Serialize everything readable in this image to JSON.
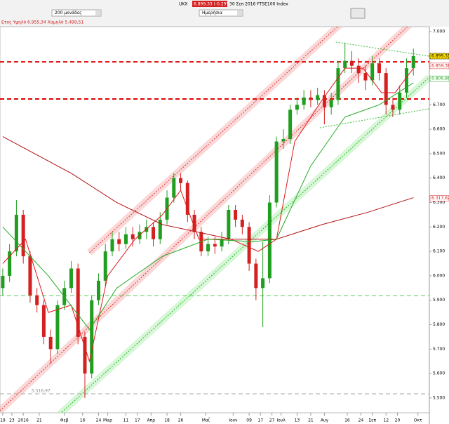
{
  "toolbar": {
    "range": "200 μονάδες",
    "symbol": "UKX",
    "quote": "6.899,33 (-0.29%)",
    "description": "30 Σεπ 2016 FTSE100 Index",
    "period": "Ημερήσια",
    "year_range": "Ετος Υψηλό 6.955,34 Χαμηλό 5.499,51"
  },
  "chart_data": {
    "type": "candlestick",
    "x": [
      0,
      3,
      6,
      9,
      12,
      15,
      18,
      21,
      24,
      27,
      30,
      33,
      36,
      39,
      42,
      45,
      48,
      51,
      54,
      57,
      60,
      63,
      66,
      69,
      72,
      75,
      78,
      81,
      84,
      87,
      90,
      93,
      96,
      99,
      102,
      105,
      108,
      111,
      114,
      117,
      120,
      123,
      126,
      129,
      132,
      135,
      138,
      141,
      144,
      147,
      150,
      153,
      156,
      159,
      162,
      165,
      168,
      171,
      174,
      177,
      180
    ],
    "open": [
      5950,
      6000,
      6100,
      6250,
      6080,
      5920,
      5880,
      5750,
      5700,
      5880,
      5950,
      6030,
      5750,
      5600,
      5900,
      5980,
      6100,
      6150,
      6130,
      6170,
      6150,
      6180,
      6200,
      6150,
      6230,
      6320,
      6400,
      6380,
      6250,
      6180,
      6100,
      6130,
      6120,
      6150,
      6270,
      6230,
      6200,
      6050,
      5950,
      5990,
      6300,
      6550,
      6560,
      6680,
      6700,
      6730,
      6720,
      6740,
      6690,
      6720,
      6850,
      6880,
      6860,
      6830,
      6800,
      6870,
      6830,
      6700,
      6680,
      6750,
      6850
    ],
    "high": [
      6030,
      6130,
      6310,
      6270,
      6100,
      5950,
      5900,
      5780,
      5900,
      5980,
      6060,
      6050,
      5770,
      5920,
      6010,
      6130,
      6180,
      6180,
      6200,
      6200,
      6210,
      6230,
      6220,
      6260,
      6350,
      6420,
      6420,
      6390,
      6270,
      6200,
      6160,
      6160,
      6180,
      6290,
      6290,
      6250,
      6220,
      6070,
      6140,
      6330,
      6570,
      6600,
      6700,
      6730,
      6760,
      6760,
      6770,
      6760,
      6750,
      6880,
      6955,
      6920,
      6890,
      6860,
      6900,
      6890,
      6850,
      6730,
      6780,
      6890,
      6930
    ],
    "low": [
      5920,
      5975,
      6080,
      6050,
      5890,
      5850,
      5720,
      5640,
      5680,
      5860,
      5930,
      5720,
      5500,
      5580,
      5880,
      5960,
      6080,
      6100,
      6110,
      6120,
      6130,
      6150,
      6120,
      6130,
      6210,
      6300,
      6350,
      6220,
      6150,
      6080,
      6080,
      6090,
      6100,
      6130,
      6200,
      6170,
      6020,
      5900,
      5790,
      5970,
      6280,
      6520,
      6540,
      6660,
      6680,
      6690,
      6700,
      6620,
      6660,
      6700,
      6830,
      6830,
      6790,
      6760,
      6780,
      6800,
      6660,
      6650,
      6660,
      6730,
      6820
    ],
    "close": [
      6000,
      6100,
      6250,
      6080,
      5920,
      5880,
      5750,
      5700,
      5880,
      5950,
      6030,
      5750,
      5600,
      5900,
      5980,
      6100,
      6150,
      6130,
      6170,
      6150,
      6180,
      6200,
      6150,
      6230,
      6320,
      6400,
      6380,
      6250,
      6180,
      6100,
      6130,
      6120,
      6150,
      6270,
      6230,
      6200,
      6050,
      5950,
      5990,
      6300,
      6550,
      6560,
      6680,
      6700,
      6730,
      6720,
      6740,
      6690,
      6720,
      6850,
      6880,
      6860,
      6830,
      6800,
      6870,
      6830,
      6700,
      6680,
      6750,
      6850,
      6899.33
    ],
    "up_color": "#1f9e1f",
    "down_color": "#d42020",
    "overlays": [
      {
        "color": "#e01818",
        "x": [
          0,
          10,
          20,
          30,
          38,
          46,
          58,
          70,
          78,
          86,
          100,
          112,
          120,
          128,
          140,
          150,
          158,
          166,
          172,
          180
        ],
        "values": [
          6050,
          6150,
          5850,
          5880,
          5650,
          6000,
          6150,
          6250,
          6350,
          6150,
          6150,
          6100,
          6150,
          6550,
          6720,
          6850,
          6850,
          6750,
          6750,
          6850
        ]
      },
      {
        "color": "#22aa22",
        "x": [
          0,
          20,
          38,
          50,
          70,
          90,
          110,
          120,
          135,
          150,
          165,
          180
        ],
        "values": [
          6200,
          6000,
          5780,
          5950,
          6080,
          6150,
          6140,
          6150,
          6450,
          6650,
          6700,
          6790
        ]
      },
      {
        "color": "#b01010",
        "x": [
          0,
          30,
          50,
          70,
          100,
          120,
          140,
          160,
          180
        ],
        "values": [
          6570,
          6420,
          6300,
          6210,
          6150,
          6150,
          6210,
          6260,
          6320
        ]
      }
    ],
    "trendlines": [
      {
        "color": "#e03030",
        "glow": "#f6a8a8",
        "x": [
          -1.2,
          180
        ],
        "y": [
          5448,
          7043
        ]
      },
      {
        "color": "#e03030",
        "glow": "#f6a8a8",
        "x": [
          38,
          149.5
        ],
        "y": [
          6095,
          7043
        ]
      },
      {
        "color": "#22bb22",
        "glow": "#a8eea8",
        "x": [
          25,
          187
        ],
        "y": [
          5434,
          6813
        ]
      },
      {
        "color": "#33bb33",
        "x": [
          139,
          187
        ],
        "y": [
          6606,
          6684
        ]
      },
      {
        "color": "#33bb33",
        "x": [
          146,
          187
        ],
        "y": [
          6957,
          6899
        ]
      }
    ],
    "hlines": [
      {
        "value": 6876,
        "color": "#e00000",
        "width": 2
      },
      {
        "value": 6724,
        "color": "#e00000",
        "width": 2
      },
      {
        "value": 5919,
        "color": "#55cc55",
        "width": 1
      },
      {
        "value": 5516.97,
        "label": "5.516,97",
        "color": "#aaaaaa",
        "width": 1
      }
    ],
    "price_labels": [
      {
        "value": 6899.33,
        "label": "6.899,33",
        "color": "#000000",
        "bg": "#ffe000"
      },
      {
        "value": 6859.38,
        "label": "6.859,38",
        "color": "#d42020",
        "bg": "#ffffff"
      },
      {
        "value": 6806.86,
        "label": "6.806,86",
        "color": "#22aa22",
        "bg": "#ffffff"
      },
      {
        "value": 6317.62,
        "label": "6.317,62",
        "color": "#d42020",
        "bg": "#ffffff"
      }
    ],
    "xlim": [
      -1.2,
      187
    ],
    "ylim": [
      5448,
      7020
    ],
    "xticks": [
      {
        "value": 0,
        "label": "19"
      },
      {
        "value": 4,
        "label": "23"
      },
      {
        "value": 9,
        "label": "2016"
      },
      {
        "value": 16,
        "label": "21"
      },
      {
        "value": 27,
        "label": "Φεβ"
      },
      {
        "value": 35,
        "label": "16"
      },
      {
        "value": 42,
        "label": "24"
      },
      {
        "value": 46,
        "label": "Μαρ"
      },
      {
        "value": 54,
        "label": "11"
      },
      {
        "value": 59,
        "label": "17"
      },
      {
        "value": 65,
        "label": "Απρ"
      },
      {
        "value": 72,
        "label": "18"
      },
      {
        "value": 78,
        "label": "26"
      },
      {
        "value": 89,
        "label": "Μαΐ"
      },
      {
        "value": 101,
        "label": "Ιουν"
      },
      {
        "value": 108,
        "label": "09"
      },
      {
        "value": 113,
        "label": "17"
      },
      {
        "value": 118,
        "label": "27"
      },
      {
        "value": 122,
        "label": "Ιουλ"
      },
      {
        "value": 129,
        "label": "13"
      },
      {
        "value": 135,
        "label": "21"
      },
      {
        "value": 141,
        "label": "Αυγ"
      },
      {
        "value": 151,
        "label": "16"
      },
      {
        "value": 157,
        "label": "24"
      },
      {
        "value": 162,
        "label": "Σεπ"
      },
      {
        "value": 168,
        "label": "12"
      },
      {
        "value": 173,
        "label": "20"
      },
      {
        "value": 182,
        "label": "Οκτ"
      }
    ],
    "yticks": [
      {
        "value": 7000,
        "label": "7.000"
      },
      {
        "value": 6900,
        "label": "6.900"
      },
      {
        "value": 6800,
        "label": "6.800"
      },
      {
        "value": 6700,
        "label": "6.700"
      },
      {
        "value": 6600,
        "label": "6.600"
      },
      {
        "value": 6500,
        "label": "6.500"
      },
      {
        "value": 6400,
        "label": "6.400"
      },
      {
        "value": 6300,
        "label": "6.300"
      },
      {
        "value": 6200,
        "label": "6.200"
      },
      {
        "value": 6100,
        "label": "6.100"
      },
      {
        "value": 6000,
        "label": "6.000"
      },
      {
        "value": 5900,
        "label": "5.900"
      },
      {
        "value": 5800,
        "label": "5.800"
      },
      {
        "value": 5700,
        "label": "5.700"
      },
      {
        "value": 5600,
        "label": "5.600"
      },
      {
        "value": 5500,
        "label": "5.500"
      }
    ]
  }
}
